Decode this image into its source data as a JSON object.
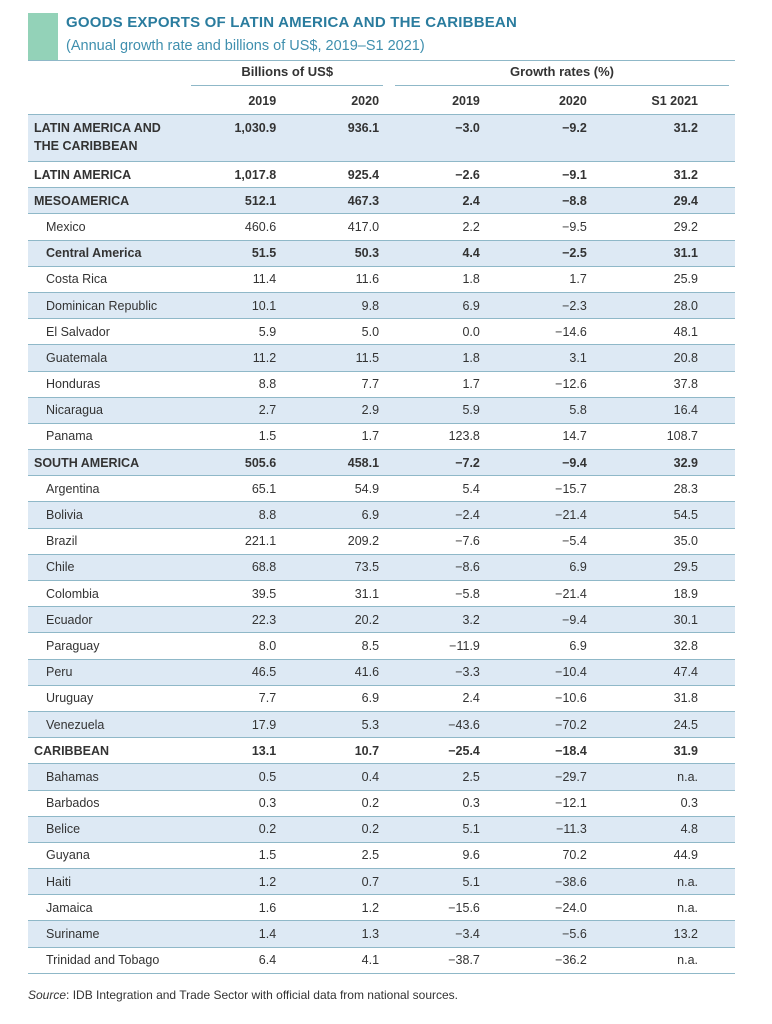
{
  "title": "GOODS EXPORTS OF LATIN AMERICA AND THE CARIBBEAN",
  "subtitle": "(Annual growth rate and billions of US$, 2019–S1 2021)",
  "group_headers": [
    "Billions of US$",
    "Growth rates (%)"
  ],
  "columns": [
    "2019",
    "2020",
    "2019",
    "2020",
    "S1 2021"
  ],
  "rows": [
    {
      "label": "LATIN AMERICA AND THE CARIBBEAN",
      "level": "region",
      "values": [
        "1,030.9",
        "936.1",
        "−3.0",
        "−9.2",
        "31.2"
      ]
    },
    {
      "label": "LATIN AMERICA",
      "level": "region",
      "values": [
        "1,017.8",
        "925.4",
        "−2.6",
        "−9.1",
        "31.2"
      ]
    },
    {
      "label": "MESOAMERICA",
      "level": "region",
      "values": [
        "512.1",
        "467.3",
        "2.4",
        "−8.8",
        "29.4"
      ]
    },
    {
      "label": "Mexico",
      "level": "country",
      "values": [
        "460.6",
        "417.0",
        "2.2",
        "−9.5",
        "29.2"
      ]
    },
    {
      "label": "Central America",
      "level": "subregion",
      "values": [
        "51.5",
        "50.3",
        "4.4",
        "−2.5",
        "31.1"
      ]
    },
    {
      "label": "Costa Rica",
      "level": "country",
      "values": [
        "11.4",
        "11.6",
        "1.8",
        "1.7",
        "25.9"
      ]
    },
    {
      "label": "Dominican Republic",
      "level": "country",
      "values": [
        "10.1",
        "9.8",
        "6.9",
        "−2.3",
        "28.0"
      ]
    },
    {
      "label": "El Salvador",
      "level": "country",
      "values": [
        "5.9",
        "5.0",
        "0.0",
        "−14.6",
        "48.1"
      ]
    },
    {
      "label": "Guatemala",
      "level": "country",
      "values": [
        "11.2",
        "11.5",
        "1.8",
        "3.1",
        "20.8"
      ]
    },
    {
      "label": "Honduras",
      "level": "country",
      "values": [
        "8.8",
        "7.7",
        "1.7",
        "−12.6",
        "37.8"
      ]
    },
    {
      "label": "Nicaragua",
      "level": "country",
      "values": [
        "2.7",
        "2.9",
        "5.9",
        "5.8",
        "16.4"
      ]
    },
    {
      "label": "Panama",
      "level": "country",
      "values": [
        "1.5",
        "1.7",
        "123.8",
        "14.7",
        "108.7"
      ]
    },
    {
      "label": "SOUTH AMERICA",
      "level": "region",
      "values": [
        "505.6",
        "458.1",
        "−7.2",
        "−9.4",
        "32.9"
      ]
    },
    {
      "label": "Argentina",
      "level": "country",
      "values": [
        "65.1",
        "54.9",
        "5.4",
        "−15.7",
        "28.3"
      ]
    },
    {
      "label": "Bolivia",
      "level": "country",
      "values": [
        "8.8",
        "6.9",
        "−2.4",
        "−21.4",
        "54.5"
      ]
    },
    {
      "label": "Brazil",
      "level": "country",
      "values": [
        "221.1",
        "209.2",
        "−7.6",
        "−5.4",
        "35.0"
      ]
    },
    {
      "label": "Chile",
      "level": "country",
      "values": [
        "68.8",
        "73.5",
        "−8.6",
        "6.9",
        "29.5"
      ]
    },
    {
      "label": "Colombia",
      "level": "country",
      "values": [
        "39.5",
        "31.1",
        "−5.8",
        "−21.4",
        "18.9"
      ]
    },
    {
      "label": "Ecuador",
      "level": "country",
      "values": [
        "22.3",
        "20.2",
        "3.2",
        "−9.4",
        "30.1"
      ]
    },
    {
      "label": "Paraguay",
      "level": "country",
      "values": [
        "8.0",
        "8.5",
        "−11.9",
        "6.9",
        "32.8"
      ]
    },
    {
      "label": "Peru",
      "level": "country",
      "values": [
        "46.5",
        "41.6",
        "−3.3",
        "−10.4",
        "47.4"
      ]
    },
    {
      "label": "Uruguay",
      "level": "country",
      "values": [
        "7.7",
        "6.9",
        "2.4",
        "−10.6",
        "31.8"
      ]
    },
    {
      "label": "Venezuela",
      "level": "country",
      "values": [
        "17.9",
        "5.3",
        "−43.6",
        "−70.2",
        "24.5"
      ]
    },
    {
      "label": "CARIBBEAN",
      "level": "region",
      "values": [
        "13.1",
        "10.7",
        "−25.4",
        "−18.4",
        "31.9"
      ]
    },
    {
      "label": "Bahamas",
      "level": "country",
      "values": [
        "0.5",
        "0.4",
        "2.5",
        "−29.7",
        "n.a."
      ]
    },
    {
      "label": "Barbados",
      "level": "country",
      "values": [
        "0.3",
        "0.2",
        "0.3",
        "−12.1",
        "0.3"
      ]
    },
    {
      "label": "Belice",
      "level": "country",
      "values": [
        "0.2",
        "0.2",
        "5.1",
        "−11.3",
        "4.8"
      ]
    },
    {
      "label": "Guyana",
      "level": "country",
      "values": [
        "1.5",
        "2.5",
        "9.6",
        "70.2",
        "44.9"
      ]
    },
    {
      "label": "Haiti",
      "level": "country",
      "values": [
        "1.2",
        "0.7",
        "5.1",
        "−38.6",
        "n.a."
      ]
    },
    {
      "label": "Jamaica",
      "level": "country",
      "values": [
        "1.6",
        "1.2",
        "−15.6",
        "−24.0",
        "n.a."
      ]
    },
    {
      "label": "Suriname",
      "level": "country",
      "values": [
        "1.4",
        "1.3",
        "−3.4",
        "−5.6",
        "13.2"
      ]
    },
    {
      "label": "Trinidad and Tobago",
      "level": "country",
      "values": [
        "6.4",
        "4.1",
        "−38.7",
        "−36.2",
        "n.a."
      ]
    }
  ],
  "source_label": "Source",
  "source_text": ": IDB Integration and Trade Sector with official data from national sources.",
  "colors": {
    "title": "#2a7c9e",
    "accent_block": "#93d2b8",
    "row_shade": "#dde9f4",
    "rule": "#8fb8c8"
  }
}
